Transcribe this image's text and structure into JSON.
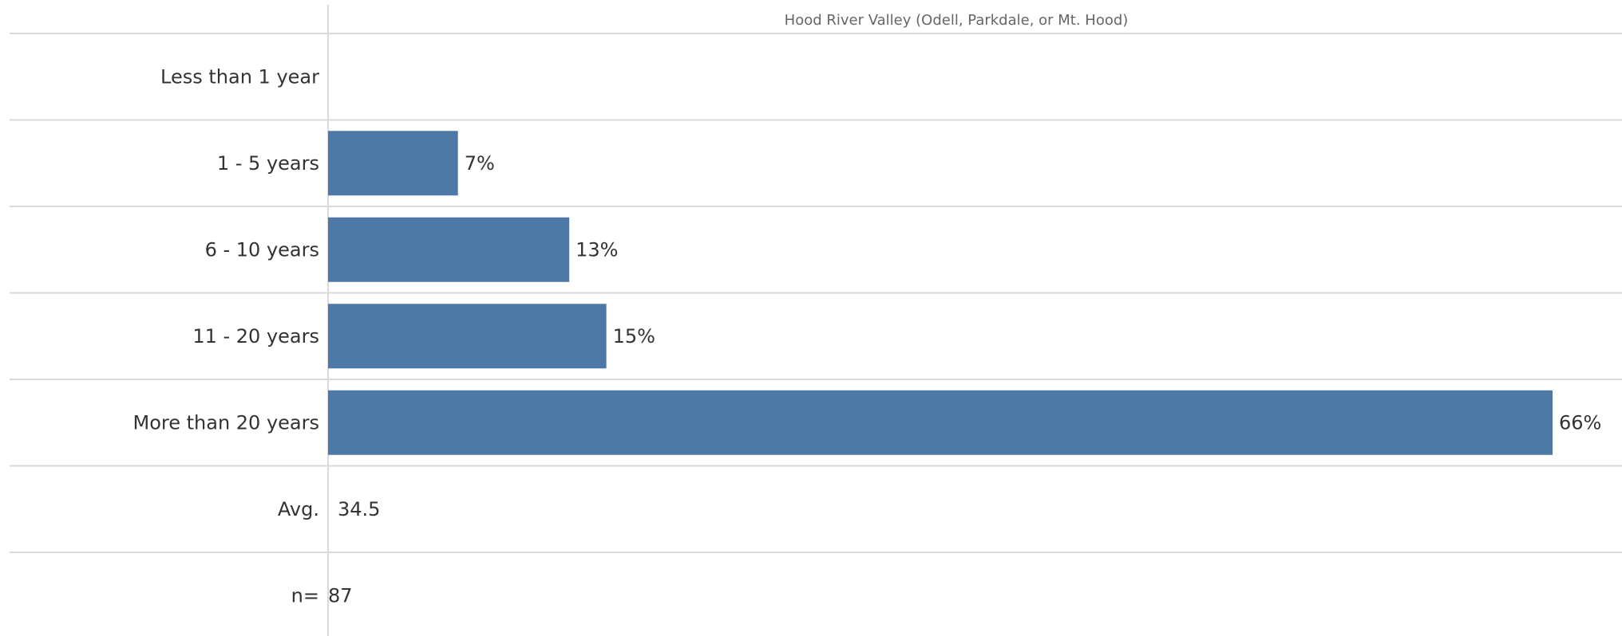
{
  "chart_data": {
    "type": "bar",
    "orientation": "horizontal",
    "title": "",
    "column_header": "Hood River Valley (Odell, Parkdale, or Mt. Hood)",
    "categories": [
      "Less than 1 year",
      "1 - 5 years",
      "6 - 10 years",
      "11 - 20 years",
      "More than 20 years"
    ],
    "values": [
      0,
      7,
      13,
      15,
      66
    ],
    "value_labels": [
      "",
      "7%",
      "13%",
      "15%",
      "66%"
    ],
    "unit": "%",
    "xlim": [
      0,
      66
    ],
    "bar_color": "#4e79a7",
    "grid": true,
    "summary_rows": [
      {
        "label": "Avg.",
        "value": "34.5"
      },
      {
        "label": "n=",
        "value": "87"
      }
    ]
  }
}
